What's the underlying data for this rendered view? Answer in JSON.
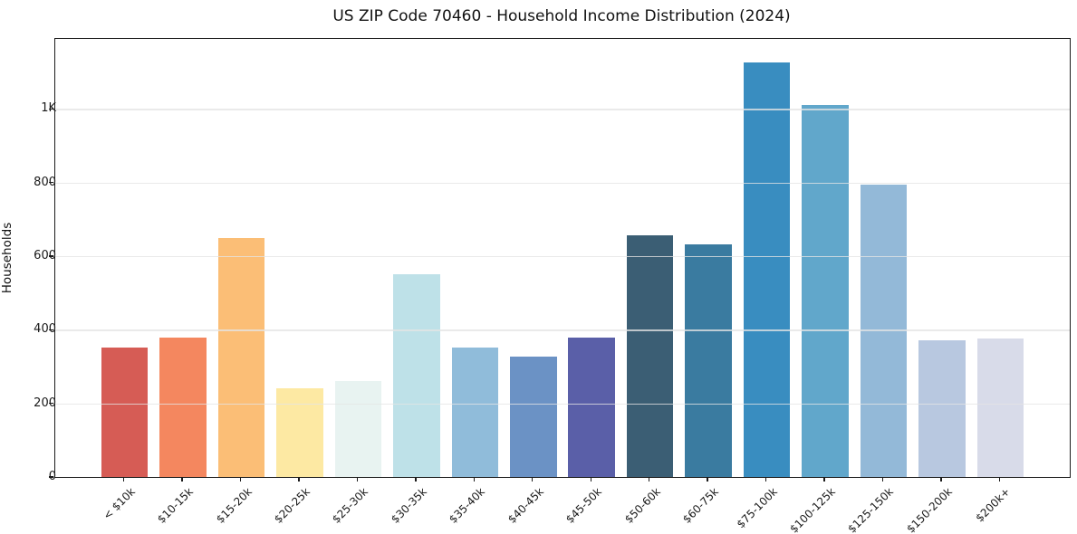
{
  "figure": {
    "background": "#ffffff"
  },
  "chart_data": {
    "type": "bar",
    "title": "US ZIP Code 70460 - Household Income Distribution (2024)",
    "xlabel": "",
    "ylabel": "Households",
    "legend": "none",
    "grid": "horizontal gridlines at y ticks, light gray, drawn over bars",
    "categories": [
      "< $10k",
      "$10-15k",
      "$15-20k",
      "$20-25k",
      "$25-30k",
      "$30-35k",
      "$35-40k",
      "$40-45k",
      "$45-50k",
      "$50-60k",
      "$60-75k",
      "$75-100k",
      "$100-125k",
      "$125-150k",
      "$150-200k",
      "$200k+"
    ],
    "values": [
      352,
      378,
      648,
      241,
      260,
      550,
      352,
      326,
      378,
      657,
      633,
      1126,
      1011,
      793,
      371,
      375
    ],
    "bar_colors": [
      "#d65c55",
      "#f4875f",
      "#fbbe76",
      "#fde9a3",
      "#e8f3f1",
      "#bee1e8",
      "#90bcda",
      "#6b92c5",
      "#5a5fa8",
      "#3b5e74",
      "#3a7ba0",
      "#398dc0",
      "#61a7cb",
      "#93b9d8",
      "#b8c8e0",
      "#d8dbe9"
    ],
    "ylim": [
      0,
      1190
    ],
    "yticks": [
      0,
      200,
      400,
      600,
      800,
      1000
    ],
    "ytick_labels": [
      "0",
      "200",
      "400",
      "600",
      "800",
      "1K"
    ],
    "axis_color": "#1a1a1a",
    "text_color": "#1a1a1a"
  }
}
